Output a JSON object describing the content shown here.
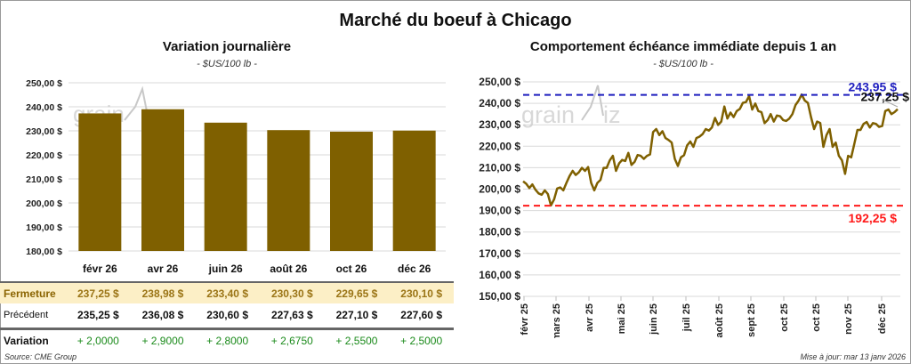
{
  "title": "Marché du boeuf à Chicago",
  "left": {
    "title": "Variation  journalière",
    "subtitle": "- $US/100 lb -"
  },
  "right": {
    "title": "Comportement échéance immédiate depuis 1 an",
    "subtitle": "- $US/100 lb -"
  },
  "watermark": "grainwiz",
  "colors": {
    "bar": "#7f6000",
    "line": "#7f6000",
    "high": "#1f1fbf",
    "low": "#ff1a1a",
    "close_bg": "#fcefc6",
    "variation": "#1a8a1a"
  },
  "table": {
    "rows": [
      {
        "label": "Fermeture",
        "values": [
          "237,25  $",
          "238,98  $",
          "233,40  $",
          "230,30  $",
          "229,65  $",
          "230,10  $"
        ]
      },
      {
        "label": "Précédent",
        "values": [
          "235,25  $",
          "236,08  $",
          "230,60  $",
          "227,63  $",
          "227,10  $",
          "227,60  $"
        ]
      },
      {
        "label": "Variation",
        "values": [
          "+ 2,0000",
          "+ 2,9000",
          "+ 2,8000",
          "+ 2,6750",
          "+ 2,5500",
          "+ 2,5000"
        ]
      }
    ]
  },
  "source": "Source: CME Group",
  "updated": "Mise à jour: mar 13 janv 2026",
  "chart_data": [
    {
      "type": "bar",
      "categories": [
        "févr 26",
        "avr 26",
        "juin 26",
        "août 26",
        "oct 26",
        "déc 26"
      ],
      "values": [
        237.25,
        238.98,
        233.4,
        230.3,
        229.65,
        230.1
      ],
      "ylim": [
        180,
        250
      ],
      "yticks": [
        "250,00 $",
        "240,00 $",
        "230,00 $",
        "220,00 $",
        "210,00 $",
        "200,00 $",
        "190,00 $",
        "180,00 $"
      ],
      "grid": true
    },
    {
      "type": "line",
      "ylim": [
        150,
        250
      ],
      "yticks": [
        "250,00 $",
        "240,00 $",
        "230,00 $",
        "220,00 $",
        "210,00 $",
        "200,00 $",
        "190,00 $",
        "180,00 $",
        "170,00 $",
        "160,00 $",
        "150,00 $"
      ],
      "xticks": [
        "févr 25",
        "mars 25",
        "avr 25",
        "mai 25",
        "juin 25",
        "juil 25",
        "août 25",
        "sept 25",
        "oct 25",
        "oct 25",
        "nov 25",
        "déc 25"
      ],
      "high": {
        "value": 243.95,
        "label": "243,95 $"
      },
      "low": {
        "value": 192.25,
        "label": "192,25 $"
      },
      "last": {
        "value": 237.25,
        "label": "237,25 $"
      },
      "values": [
        203.6,
        202.5,
        200.5,
        202.2,
        199.7,
        198,
        197.4,
        199.4,
        197.7,
        192.4,
        195.2,
        200.3,
        200.8,
        199.4,
        202.9,
        206.1,
        208.5,
        206.6,
        207.8,
        209.9,
        208.5,
        210.3,
        202.9,
        199.4,
        202.9,
        204.3,
        209.9,
        209.9,
        213.4,
        215.5,
        208.5,
        212,
        213.6,
        213.1,
        216.9,
        211.3,
        212.7,
        215.9,
        215.5,
        214.1,
        215.5,
        216.2,
        226.6,
        228,
        225.2,
        227,
        223.8,
        222.9,
        221.7,
        214.1,
        210.8,
        214.8,
        215.8,
        220.4,
        222.2,
        219.7,
        223.8,
        224.5,
        225.7,
        228,
        227.3,
        228.7,
        233.2,
        229.9,
        231.5,
        238.5,
        232.9,
        235.7,
        233.6,
        236.4,
        237.4,
        240.2,
        240.6,
        243.4,
        237.1,
        239.9,
        236.4,
        235.9,
        230.8,
        232.2,
        235,
        231.5,
        234.3,
        234,
        232.2,
        231.8,
        232.9,
        235,
        239.2,
        241.3,
        244.1,
        241.3,
        240.2,
        233.6,
        228,
        231.5,
        230.8,
        219.7,
        225.2,
        228,
        219.7,
        221.7,
        215.5,
        213.4,
        207.1,
        215.5,
        214.8,
        221.1,
        227.6,
        227.6,
        230.4,
        231.3,
        228.7,
        230.8,
        230.4,
        229,
        229.4,
        236.4,
        237.1,
        235,
        235.9,
        237.25
      ],
      "grid": true
    }
  ]
}
